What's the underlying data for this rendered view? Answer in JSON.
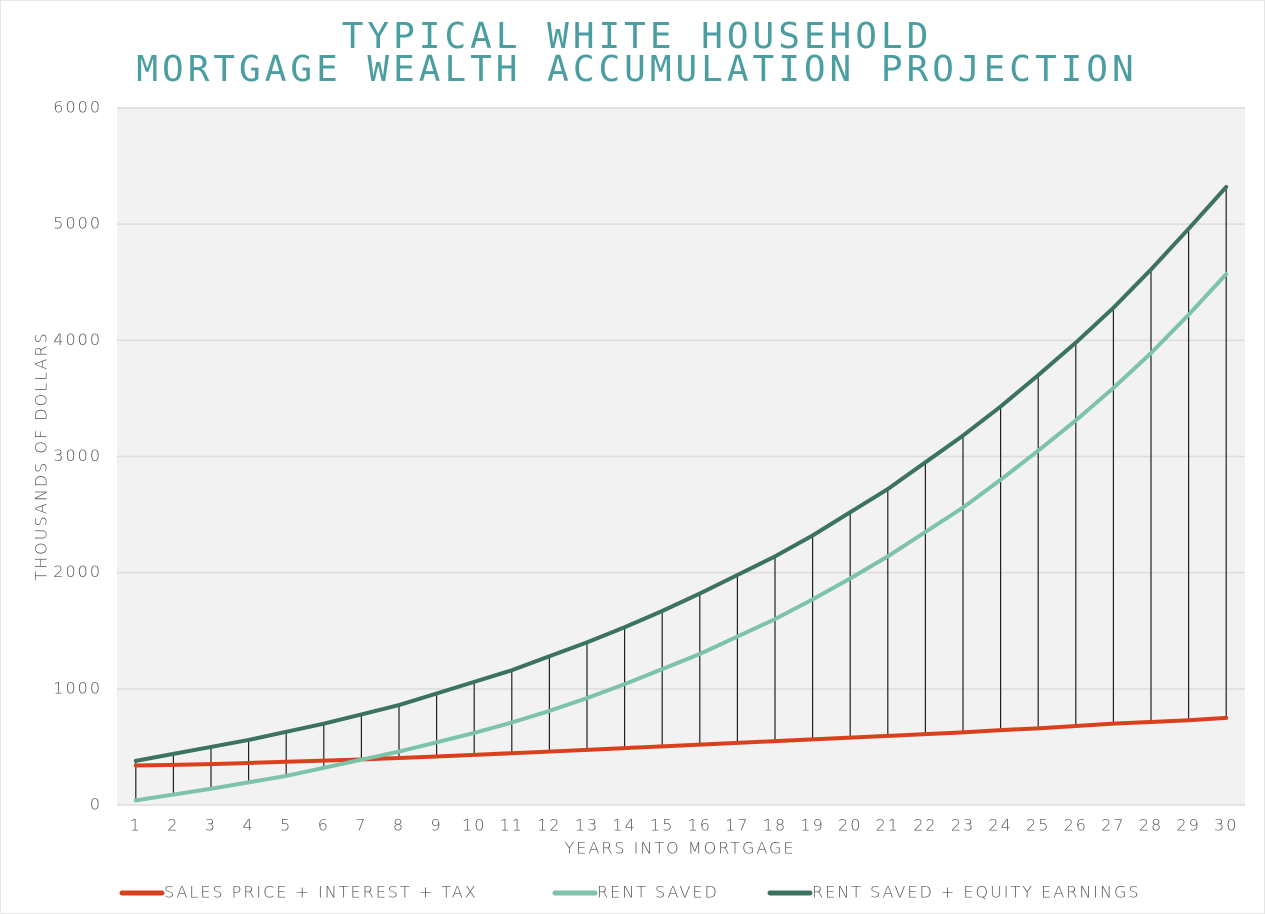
{
  "chart_data": {
    "type": "line",
    "title": [
      "TYPICAL WHITE HOUSEHOLD",
      "MORTGAGE WEALTH ACCUMULATION PROJECTION"
    ],
    "xlabel": "YEARS INTO MORTGAGE",
    "ylabel": "THOUSANDS OF DOLLARS",
    "x": [
      1,
      2,
      3,
      4,
      5,
      6,
      7,
      8,
      9,
      10,
      11,
      12,
      13,
      14,
      15,
      16,
      17,
      18,
      19,
      20,
      21,
      22,
      23,
      24,
      25,
      26,
      27,
      28,
      29,
      30
    ],
    "xlim": [
      0.5,
      30.5
    ],
    "xticks": [
      1,
      2,
      3,
      4,
      5,
      6,
      7,
      8,
      9,
      10,
      11,
      12,
      13,
      14,
      15,
      16,
      17,
      18,
      19,
      20,
      21,
      22,
      23,
      24,
      25,
      26,
      27,
      28,
      29,
      30
    ],
    "ylim": [
      0,
      6000
    ],
    "yticks": [
      0,
      1000,
      2000,
      3000,
      4000,
      5000,
      6000
    ],
    "grid": true,
    "drop_lines": true,
    "legend": "bottom",
    "series": [
      {
        "name": "SALES PRICE + INTEREST + TAX",
        "color": "#d9411e",
        "values": [
          340,
          345,
          352,
          362,
          372,
          382,
          392,
          405,
          418,
          432,
          446,
          460,
          475,
          490,
          505,
          520,
          535,
          550,
          565,
          580,
          595,
          610,
          625,
          645,
          660,
          680,
          700,
          715,
          730,
          750
        ]
      },
      {
        "name": "RENT SAVED",
        "color": "#7cc3aa",
        "values": [
          40,
          90,
          140,
          195,
          250,
          320,
          390,
          460,
          540,
          620,
          710,
          810,
          920,
          1040,
          1170,
          1300,
          1450,
          1600,
          1770,
          1950,
          2140,
          2350,
          2560,
          2800,
          3050,
          3310,
          3590,
          3890,
          4220,
          4570
        ]
      },
      {
        "name": "RENT SAVED + EQUITY EARNINGS",
        "color": "#3b735e",
        "values": [
          380,
          440,
          500,
          560,
          630,
          700,
          780,
          860,
          960,
          1060,
          1160,
          1280,
          1400,
          1530,
          1670,
          1820,
          1980,
          2140,
          2320,
          2520,
          2720,
          2950,
          3180,
          3430,
          3700,
          3980,
          4280,
          4610,
          4960,
          5320
        ]
      }
    ]
  }
}
